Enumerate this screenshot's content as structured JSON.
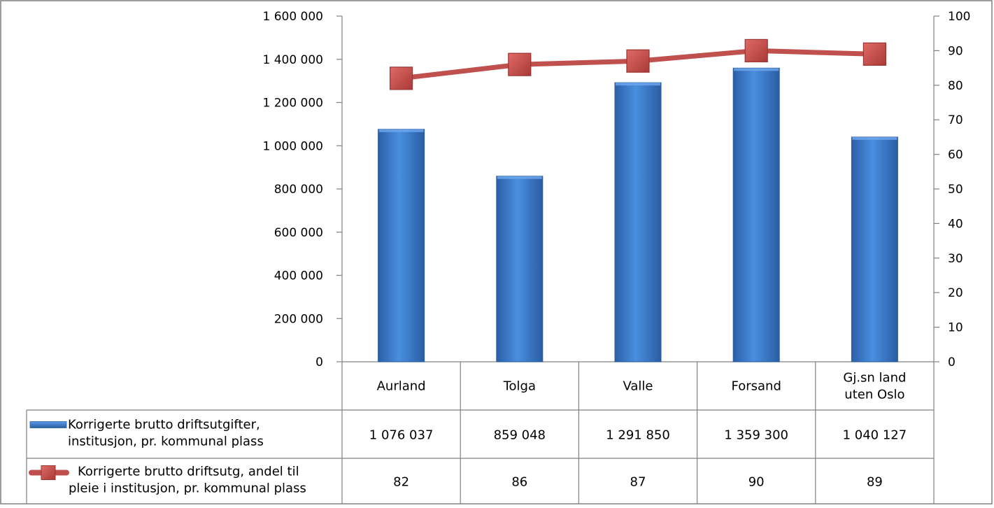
{
  "chart_data": {
    "type": "bar",
    "title": "",
    "categories": [
      "Aurland",
      "Tolga",
      "Valle",
      "Forsand",
      "Gj.sn land uten Oslo"
    ],
    "category_lines": [
      [
        "Aurland"
      ],
      [
        "Tolga"
      ],
      [
        "Valle"
      ],
      [
        "Forsand"
      ],
      [
        "Gj.sn land",
        "uten Oslo"
      ]
    ],
    "y_left": {
      "lim": [
        0,
        1600000
      ],
      "ticks": [
        0,
        200000,
        400000,
        600000,
        800000,
        1000000,
        1200000,
        1400000,
        1600000
      ],
      "tick_labels": [
        "0",
        "200 000",
        "400 000",
        "600 000",
        "800 000",
        "1 000 000",
        "1 200 000",
        "1 400 000",
        "1 600 000"
      ]
    },
    "y_right": {
      "lim": [
        0,
        100
      ],
      "ticks": [
        0,
        10,
        20,
        30,
        40,
        50,
        60,
        70,
        80,
        90,
        100
      ],
      "tick_labels": [
        "0",
        "10",
        "20",
        "30",
        "40",
        "50",
        "60",
        "70",
        "80",
        "90",
        "100"
      ]
    },
    "series": [
      {
        "name": "Korrigerte brutto driftsutgifter, institusjon, pr. kommunal plass",
        "name_lines": [
          "Korrigerte brutto driftsutgifter,",
          "institusjon, pr. kommunal plass"
        ],
        "type": "bar",
        "axis": "left",
        "color": "#3A78C9",
        "values": [
          1076037,
          859048,
          1291850,
          1359300,
          1040127
        ],
        "value_labels": [
          "1 076 037",
          "859 048",
          "1 291 850",
          "1 359 300",
          "1 040 127"
        ]
      },
      {
        "name": "Korrigerte brutto driftsutg, andel til pleie i institusjon, pr. kommunal plass",
        "name_lines": [
          "Korrigerte brutto driftsutg, andel til",
          "pleie i institusjon, pr. kommunal plass"
        ],
        "type": "line",
        "axis": "right",
        "color": "#C0504D",
        "values": [
          82,
          86,
          87,
          90,
          89
        ],
        "value_labels": [
          "82",
          "86",
          "87",
          "90",
          "89"
        ]
      }
    ],
    "grid": false,
    "legend": "data-table"
  }
}
